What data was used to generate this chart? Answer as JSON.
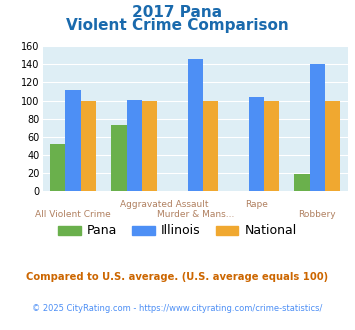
{
  "title_line1": "2017 Pana",
  "title_line2": "Violent Crime Comparison",
  "pana": [
    52,
    73,
    0,
    0,
    19
  ],
  "illinois": [
    112,
    101,
    146,
    104,
    140
  ],
  "national": [
    100,
    100,
    100,
    100,
    100
  ],
  "pana_color": "#6ab04c",
  "illinois_color": "#4d8ff5",
  "national_color": "#f0a830",
  "ylim": [
    0,
    160
  ],
  "yticks": [
    0,
    20,
    40,
    60,
    80,
    100,
    120,
    140,
    160
  ],
  "plot_bg": "#deeef5",
  "title_color": "#1a6aad",
  "label_color": "#b08060",
  "footer1": "Compared to U.S. average. (U.S. average equals 100)",
  "footer2": "© 2025 CityRating.com - https://www.cityrating.com/crime-statistics/",
  "footer1_color": "#cc6600",
  "footer2_color": "#4d8ff5"
}
